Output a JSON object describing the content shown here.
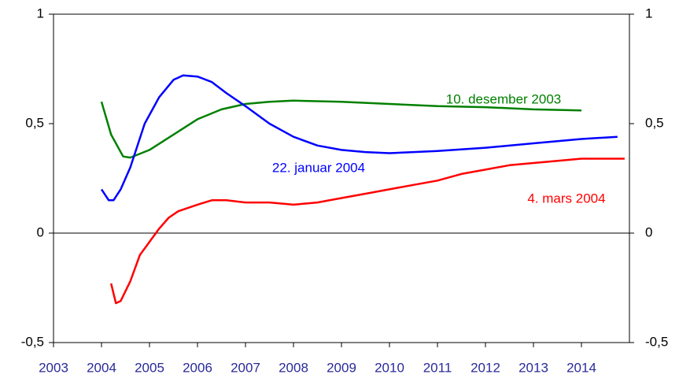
{
  "chart_data": {
    "type": "line",
    "xlim": [
      2003,
      2015
    ],
    "xticks": [
      2003,
      2004,
      2005,
      2006,
      2007,
      2008,
      2009,
      2010,
      2011,
      2012,
      2013,
      2014
    ],
    "ylim": [
      -0.5,
      1
    ],
    "yticks": [
      {
        "value": -0.5,
        "label": "-0,5"
      },
      0,
      {
        "value": 0.5,
        "label": "0,5"
      },
      1
    ],
    "y2lim": [
      -0.5,
      1
    ],
    "y2ticks": [
      {
        "value": -0.5,
        "label": "-0,5"
      },
      0,
      {
        "value": 0.5,
        "label": "0,5"
      },
      1
    ],
    "grid": false,
    "series": [
      {
        "name": "10. desember 2003",
        "color": "#008000",
        "x": [
          2004.0,
          2004.2,
          2004.45,
          2004.6,
          2005.0,
          2005.5,
          2006.0,
          2006.5,
          2007.0,
          2007.5,
          2008.0,
          2009.0,
          2010.0,
          2011.0,
          2012.0,
          2013.0,
          2014.0
        ],
        "values": [
          0.6,
          0.45,
          0.35,
          0.345,
          0.38,
          0.45,
          0.52,
          0.565,
          0.59,
          0.6,
          0.605,
          0.6,
          0.59,
          0.58,
          0.575,
          0.565,
          0.56
        ]
      },
      {
        "name": "22. januar 2004",
        "color": "#0000ff",
        "x": [
          2004.0,
          2004.15,
          2004.25,
          2004.4,
          2004.6,
          2004.9,
          2005.2,
          2005.5,
          2005.7,
          2006.0,
          2006.3,
          2006.6,
          2007.0,
          2007.5,
          2008.0,
          2008.5,
          2009.0,
          2009.5,
          2010.0,
          2010.5,
          2011.0,
          2012.0,
          2013.0,
          2014.0,
          2014.75
        ],
        "values": [
          0.2,
          0.15,
          0.15,
          0.2,
          0.3,
          0.5,
          0.62,
          0.7,
          0.72,
          0.715,
          0.69,
          0.64,
          0.58,
          0.5,
          0.44,
          0.4,
          0.38,
          0.37,
          0.365,
          0.37,
          0.375,
          0.39,
          0.41,
          0.43,
          0.44
        ]
      },
      {
        "name": "4. mars 2004",
        "color": "#ff0000",
        "x": [
          2004.2,
          2004.3,
          2004.4,
          2004.6,
          2004.8,
          2005.0,
          2005.2,
          2005.4,
          2005.6,
          2006.0,
          2006.3,
          2006.6,
          2007.0,
          2007.5,
          2008.0,
          2008.5,
          2009.0,
          2009.5,
          2010.0,
          2010.5,
          2011.0,
          2011.5,
          2012.0,
          2012.5,
          2013.0,
          2013.5,
          2014.0,
          2014.9
        ],
        "values": [
          -0.23,
          -0.32,
          -0.31,
          -0.22,
          -0.1,
          -0.04,
          0.02,
          0.07,
          0.1,
          0.13,
          0.15,
          0.15,
          0.14,
          0.14,
          0.13,
          0.14,
          0.16,
          0.18,
          0.2,
          0.22,
          0.24,
          0.27,
          0.29,
          0.31,
          0.32,
          0.33,
          0.34,
          0.34
        ]
      }
    ]
  }
}
